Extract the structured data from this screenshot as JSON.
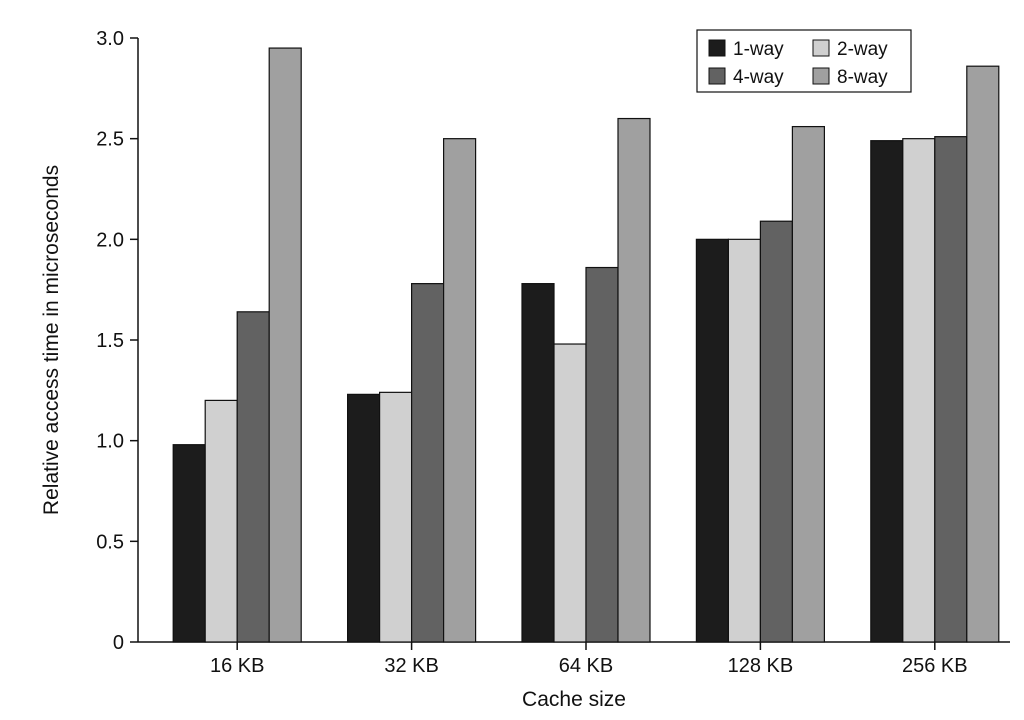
{
  "chart_data": {
    "type": "bar",
    "xlabel": "Cache size",
    "ylabel": "Relative access time in microseconds",
    "categories": [
      "16 KB",
      "32 KB",
      "64 KB",
      "128 KB",
      "256 KB"
    ],
    "series": [
      {
        "name": "1-way",
        "color": "#1c1c1c",
        "values": [
          0.98,
          1.23,
          1.78,
          2.0,
          2.49
        ]
      },
      {
        "name": "2-way",
        "color": "#d0d0d0",
        "values": [
          1.2,
          1.24,
          1.48,
          2.0,
          2.5
        ]
      },
      {
        "name": "4-way",
        "color": "#626262",
        "values": [
          1.64,
          1.78,
          1.86,
          2.09,
          2.51
        ]
      },
      {
        "name": "8-way",
        "color": "#a0a0a0",
        "values": [
          2.95,
          2.5,
          2.6,
          2.56,
          2.86
        ]
      }
    ],
    "ylim": [
      0,
      3.0
    ],
    "yticks": [
      "0",
      "0.5",
      "1.0",
      "1.5",
      "2.0",
      "2.5",
      "3.0"
    ],
    "legend_position": "top-right",
    "grid": false
  }
}
